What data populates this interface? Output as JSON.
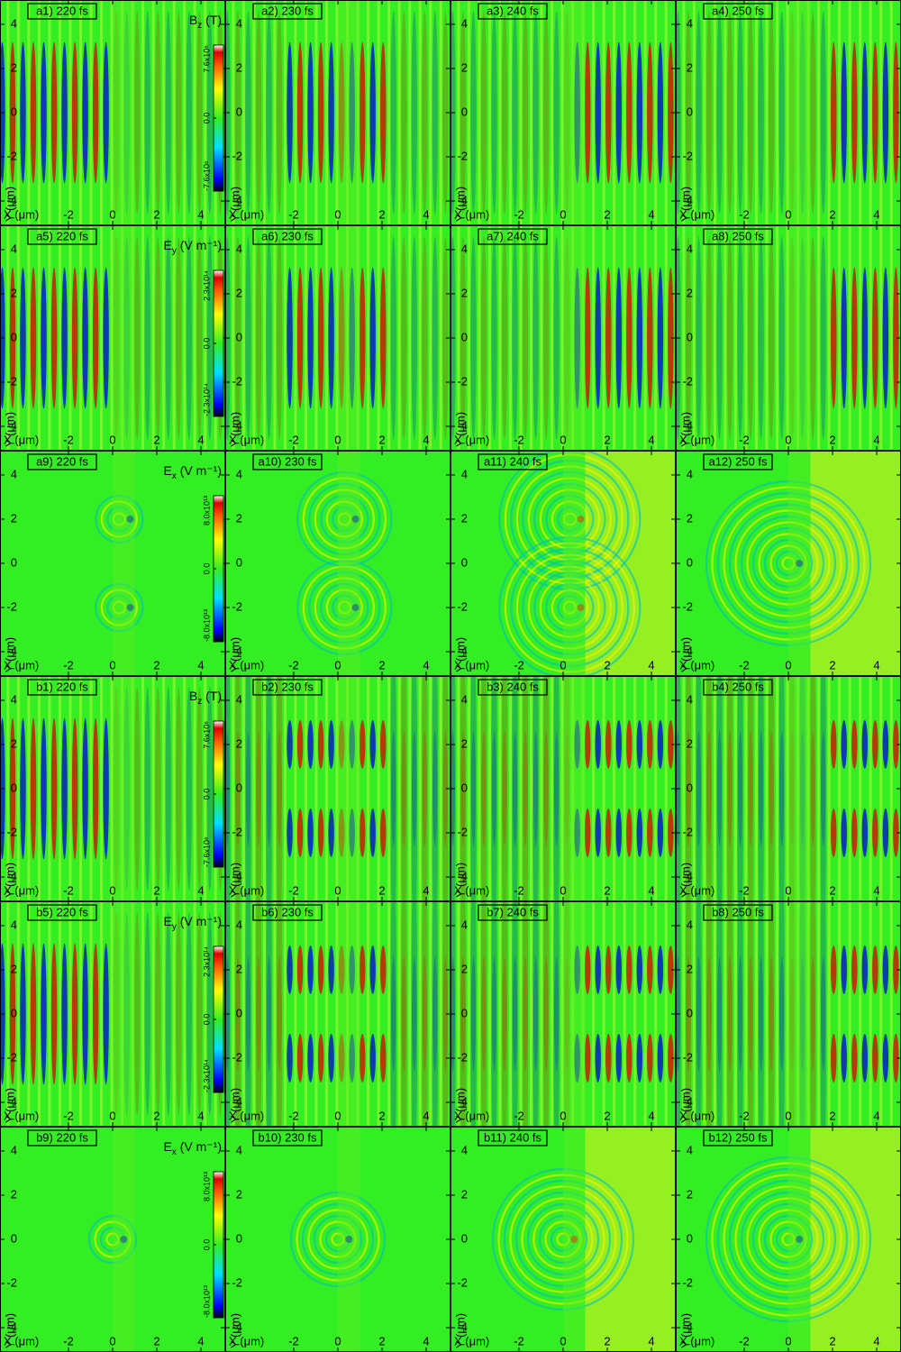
{
  "chart_data": [
    {
      "type": "heatmap",
      "title": "a1) 220 fs",
      "xlabel": "X (μm)",
      "ylabel": "Y (μm)",
      "xlim": [
        -5.1,
        5.1
      ],
      "ylim": [
        -5.1,
        5.1
      ],
      "xticks": [
        -2,
        0,
        2,
        4
      ],
      "yticks": [
        -4,
        -2,
        0,
        2,
        4
      ],
      "colorbar": {
        "symbol": "B",
        "subscript": "z",
        "unit": " (T)",
        "lim": [
          -7600000,
          7600000
        ],
        "ticks": [
          {
            "value": -7600000,
            "label": "-7.6x10⁶"
          },
          {
            "value": 0,
            "label": "0.0"
          },
          {
            "value": 7600000,
            "label": "7.6x10⁶"
          }
        ]
      }
    },
    {
      "type": "heatmap",
      "title": "a2) 230 fs",
      "xlabel": "X (μm)",
      "ylabel": "Y (μm)",
      "xlim": [
        -5.1,
        5.1
      ],
      "ylim": [
        -5.1,
        5.1
      ],
      "xticks": [
        -2,
        0,
        2,
        4
      ],
      "yticks": [
        -4,
        -2,
        0,
        2,
        4
      ]
    },
    {
      "type": "heatmap",
      "title": "a3) 240 fs",
      "xlabel": "X (μm)",
      "ylabel": "Y (μm)",
      "xlim": [
        -5.1,
        5.1
      ],
      "ylim": [
        -5.1,
        5.1
      ],
      "xticks": [
        -2,
        0,
        2,
        4
      ],
      "yticks": [
        -4,
        -2,
        0,
        2,
        4
      ]
    },
    {
      "type": "heatmap",
      "title": "a4) 250 fs",
      "xlabel": "X (μm)",
      "ylabel": "Y (μm)",
      "xlim": [
        -5.1,
        5.1
      ],
      "ylim": [
        -5.1,
        5.1
      ],
      "xticks": [
        -2,
        0,
        2,
        4
      ],
      "yticks": [
        -4,
        -2,
        0,
        2,
        4
      ]
    },
    {
      "type": "heatmap",
      "title": "a5) 220 fs",
      "xlabel": "X (μm)",
      "ylabel": "Y (μm)",
      "xlim": [
        -5.1,
        5.1
      ],
      "ylim": [
        -5.1,
        5.1
      ],
      "xticks": [
        -2,
        0,
        2,
        4
      ],
      "yticks": [
        -4,
        -2,
        0,
        2,
        4
      ],
      "colorbar": {
        "symbol": "E",
        "subscript": "y",
        "unit": " (V m⁻¹)",
        "lim": [
          -230000000000000,
          230000000000000
        ],
        "ticks": [
          {
            "value": -230000000000000,
            "label": "-2.3x10¹⁴"
          },
          {
            "value": 0,
            "label": "0.0"
          },
          {
            "value": 230000000000000,
            "label": "2.3x10¹⁴"
          }
        ]
      }
    },
    {
      "type": "heatmap",
      "title": "a6) 230 fs",
      "xlabel": "X (μm)",
      "ylabel": "Y (μm)",
      "xlim": [
        -5.1,
        5.1
      ],
      "ylim": [
        -5.1,
        5.1
      ],
      "xticks": [
        -2,
        0,
        2,
        4
      ],
      "yticks": [
        -4,
        -2,
        0,
        2,
        4
      ]
    },
    {
      "type": "heatmap",
      "title": "a7) 240 fs",
      "xlabel": "X (μm)",
      "ylabel": "Y (μm)",
      "xlim": [
        -5.1,
        5.1
      ],
      "ylim": [
        -5.1,
        5.1
      ],
      "xticks": [
        -2,
        0,
        2,
        4
      ],
      "yticks": [
        -4,
        -2,
        0,
        2,
        4
      ]
    },
    {
      "type": "heatmap",
      "title": "a8) 250 fs",
      "xlabel": "X (μm)",
      "ylabel": "Y (μm)",
      "xlim": [
        -5.1,
        5.1
      ],
      "ylim": [
        -5.1,
        5.1
      ],
      "xticks": [
        -2,
        0,
        2,
        4
      ],
      "yticks": [
        -4,
        -2,
        0,
        2,
        4
      ]
    },
    {
      "type": "heatmap",
      "title": "a9) 220 fs",
      "xlabel": "X (μm)",
      "ylabel": "Y (μm)",
      "xlim": [
        -5.1,
        5.1
      ],
      "ylim": [
        -5.1,
        5.1
      ],
      "xticks": [
        -2,
        0,
        2,
        4
      ],
      "yticks": [
        -4,
        -2,
        0,
        2,
        4
      ],
      "colorbar": {
        "symbol": "E",
        "subscript": "x",
        "unit": " (V m⁻¹)",
        "lim": [
          -80000000000000,
          80000000000000
        ],
        "ticks": [
          {
            "value": -80000000000000,
            "label": "-8.0x10¹³"
          },
          {
            "value": 0,
            "label": "0.0"
          },
          {
            "value": 80000000000000,
            "label": "8.0x10¹³"
          }
        ]
      }
    },
    {
      "type": "heatmap",
      "title": "a10) 230 fs",
      "xlabel": "X (μm)",
      "ylabel": "Y (μm)",
      "xlim": [
        -5.1,
        5.1
      ],
      "ylim": [
        -5.1,
        5.1
      ],
      "xticks": [
        -2,
        0,
        2,
        4
      ],
      "yticks": [
        -4,
        -2,
        0,
        2,
        4
      ]
    },
    {
      "type": "heatmap",
      "title": "a11) 240 fs",
      "xlabel": "X (μm)",
      "ylabel": "Y (μm)",
      "xlim": [
        -5.1,
        5.1
      ],
      "ylim": [
        -5.1,
        5.1
      ],
      "xticks": [
        -2,
        0,
        2,
        4
      ],
      "yticks": [
        -4,
        -2,
        0,
        2,
        4
      ]
    },
    {
      "type": "heatmap",
      "title": "a12) 250 fs",
      "xlabel": "X (μm)",
      "ylabel": "Y (μm)",
      "xlim": [
        -5.1,
        5.1
      ],
      "ylim": [
        -5.1,
        5.1
      ],
      "xticks": [
        -2,
        0,
        2,
        4
      ],
      "yticks": [
        -4,
        -2,
        0,
        2,
        4
      ]
    },
    {
      "type": "heatmap",
      "title": "b1) 220 fs",
      "xlabel": "X (μm)",
      "ylabel": "Y (μm)",
      "xlim": [
        -5.1,
        5.1
      ],
      "ylim": [
        -5.1,
        5.1
      ],
      "xticks": [
        -2,
        0,
        2,
        4
      ],
      "yticks": [
        -4,
        -2,
        0,
        2,
        4
      ],
      "colorbar": {
        "symbol": "B",
        "subscript": "z",
        "unit": " (T)",
        "lim": [
          -7600000,
          7600000
        ],
        "ticks": [
          {
            "value": -7600000,
            "label": "-7.6x10⁶"
          },
          {
            "value": 0,
            "label": "0.0"
          },
          {
            "value": 7600000,
            "label": "7.6x10⁶"
          }
        ]
      }
    },
    {
      "type": "heatmap",
      "title": "b2) 230 fs",
      "xlabel": "X (μm)",
      "ylabel": "Y (μm)",
      "xlim": [
        -5.1,
        5.1
      ],
      "ylim": [
        -5.1,
        5.1
      ],
      "xticks": [
        -2,
        0,
        2,
        4
      ],
      "yticks": [
        -4,
        -2,
        0,
        2,
        4
      ]
    },
    {
      "type": "heatmap",
      "title": "b3) 240 fs",
      "xlabel": "X (μm)",
      "ylabel": "Y (μm)",
      "xlim": [
        -5.1,
        5.1
      ],
      "ylim": [
        -5.1,
        5.1
      ],
      "xticks": [
        -2,
        0,
        2,
        4
      ],
      "yticks": [
        -4,
        -2,
        0,
        2,
        4
      ]
    },
    {
      "type": "heatmap",
      "title": "b4) 250 fs",
      "xlabel": "X (μm)",
      "ylabel": "Y (μm)",
      "xlim": [
        -5.1,
        5.1
      ],
      "ylim": [
        -5.1,
        5.1
      ],
      "xticks": [
        -2,
        0,
        2,
        4
      ],
      "yticks": [
        -4,
        -2,
        0,
        2,
        4
      ]
    },
    {
      "type": "heatmap",
      "title": "b5) 220 fs",
      "xlabel": "X (μm)",
      "ylabel": "Y (μm)",
      "xlim": [
        -5.1,
        5.1
      ],
      "ylim": [
        -5.1,
        5.1
      ],
      "xticks": [
        -2,
        0,
        2,
        4
      ],
      "yticks": [
        -4,
        -2,
        0,
        2,
        4
      ],
      "colorbar": {
        "symbol": "E",
        "subscript": "y",
        "unit": " (V m⁻¹)",
        "lim": [
          -230000000000000,
          230000000000000
        ],
        "ticks": [
          {
            "value": -230000000000000,
            "label": "-2.3x10¹⁴"
          },
          {
            "value": 0,
            "label": "0.0"
          },
          {
            "value": 230000000000000,
            "label": "2.3x10¹⁴"
          }
        ]
      }
    },
    {
      "type": "heatmap",
      "title": "b6) 230 fs",
      "xlabel": "X (μm)",
      "ylabel": "Y (μm)",
      "xlim": [
        -5.1,
        5.1
      ],
      "ylim": [
        -5.1,
        5.1
      ],
      "xticks": [
        -2,
        0,
        2,
        4
      ],
      "yticks": [
        -4,
        -2,
        0,
        2,
        4
      ]
    },
    {
      "type": "heatmap",
      "title": "b7) 240 fs",
      "xlabel": "X (μm)",
      "ylabel": "Y (μm)",
      "xlim": [
        -5.1,
        5.1
      ],
      "ylim": [
        -5.1,
        5.1
      ],
      "xticks": [
        -2,
        0,
        2,
        4
      ],
      "yticks": [
        -4,
        -2,
        0,
        2,
        4
      ]
    },
    {
      "type": "heatmap",
      "title": "b8) 250 fs",
      "xlabel": "X (μm)",
      "ylabel": "Y (μm)",
      "xlim": [
        -5.1,
        5.1
      ],
      "ylim": [
        -5.1,
        5.1
      ],
      "xticks": [
        -2,
        0,
        2,
        4
      ],
      "yticks": [
        -4,
        -2,
        0,
        2,
        4
      ]
    },
    {
      "type": "heatmap",
      "title": "b9) 220 fs",
      "xlabel": "X (μm)",
      "ylabel": "Y (μm)",
      "xlim": [
        -5.1,
        5.1
      ],
      "ylim": [
        -5.1,
        5.1
      ],
      "xticks": [
        -2,
        0,
        2,
        4
      ],
      "yticks": [
        -4,
        -2,
        0,
        2,
        4
      ],
      "colorbar": {
        "symbol": "E",
        "subscript": "x",
        "unit": " (V m⁻¹)",
        "lim": [
          -80000000000000,
          80000000000000
        ],
        "ticks": [
          {
            "value": -80000000000000,
            "label": "-8.0x10¹³"
          },
          {
            "value": 0,
            "label": "0.0"
          },
          {
            "value": 80000000000000,
            "label": "8.0x10¹³"
          }
        ]
      }
    },
    {
      "type": "heatmap",
      "title": "b10) 230 fs",
      "xlabel": "X (μm)",
      "ylabel": "Y (μm)",
      "xlim": [
        -5.1,
        5.1
      ],
      "ylim": [
        -5.1,
        5.1
      ],
      "xticks": [
        -2,
        0,
        2,
        4
      ],
      "yticks": [
        -4,
        -2,
        0,
        2,
        4
      ]
    },
    {
      "type": "heatmap",
      "title": "b11) 240 fs",
      "xlabel": "X (μm)",
      "ylabel": "Y (μm)",
      "xlim": [
        -5.1,
        5.1
      ],
      "ylim": [
        -5.1,
        5.1
      ],
      "xticks": [
        -2,
        0,
        2,
        4
      ],
      "yticks": [
        -4,
        -2,
        0,
        2,
        4
      ]
    },
    {
      "type": "heatmap",
      "title": "b12) 250 fs",
      "xlabel": "X (μm)",
      "ylabel": "Y (μm)",
      "xlim": [
        -5.1,
        5.1
      ],
      "ylim": [
        -5.1,
        5.1
      ],
      "xticks": [
        -2,
        0,
        2,
        4
      ],
      "yticks": [
        -4,
        -2,
        0,
        2,
        4
      ]
    }
  ]
}
